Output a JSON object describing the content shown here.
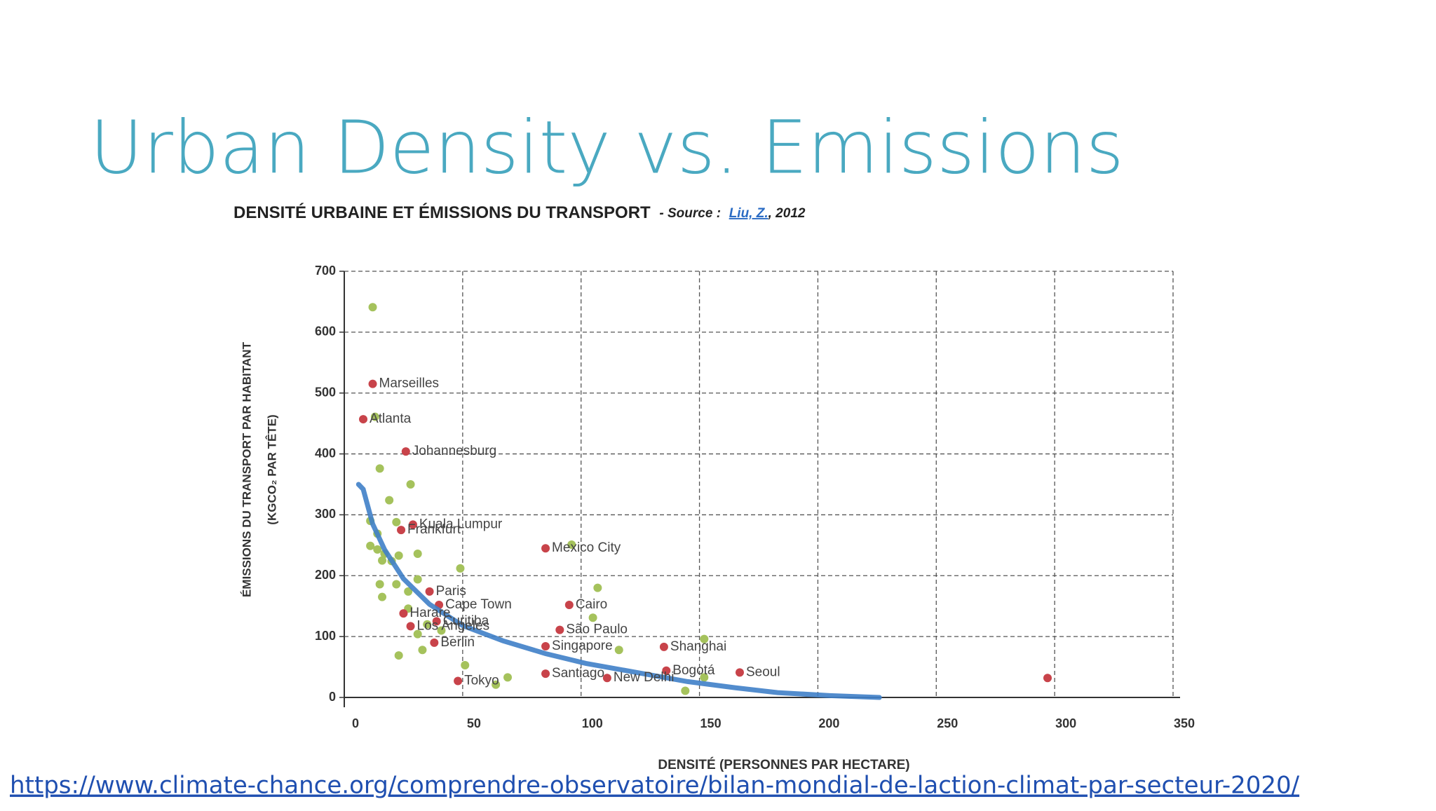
{
  "title": "Urban Density vs. Emissions",
  "link": "https://www.climate-chance.org/comprendre-observatoire/bilan-mondial-de-laction-climat-par-secteur-2020/",
  "chart_data": {
    "type": "scatter",
    "title": "DENSITÉ URBAINE ET ÉMISSIONS DU TRANSPORT",
    "source_label": "- Source :",
    "source_author": "Liu, Z.",
    "source_year": ", 2012",
    "xlabel": "DENSITÉ (PERSONNES PAR HECTARE)",
    "ylabel": [
      "ÉMISSIONS DU TRANSPORT PAR HABITANT",
      "(KGCO₂ PAR TÊTE)"
    ],
    "xlim": [
      0,
      350
    ],
    "ylim": [
      0,
      700
    ],
    "xticks": [
      0,
      50,
      100,
      150,
      200,
      250,
      300,
      350
    ],
    "yticks": [
      0,
      100,
      200,
      300,
      400,
      500,
      600,
      700
    ],
    "grid": true,
    "series": [
      {
        "color": "#c8434a",
        "x": [
          12,
          8,
          26,
          29,
          24,
          85,
          36,
          40,
          25,
          39,
          28,
          38,
          95,
          91,
          85,
          135,
          136,
          167,
          48,
          85,
          111,
          297
        ],
        "y": [
          515,
          457,
          404,
          284,
          275,
          245,
          174,
          152,
          138,
          125,
          117,
          90,
          152,
          111,
          84,
          83,
          44,
          41,
          27,
          39,
          32,
          32
        ],
        "labels": [
          "Marseilles",
          "Atlanta",
          "Johannesburg",
          "Kuala Lumpur",
          "Frankfurt",
          "Mexico City",
          "Paris",
          "Cape Town",
          "Harare",
          "Curitiba",
          "Los Angeles",
          "Berlin",
          "Cairo",
          "São Paulo",
          "Singapore",
          "Shanghai",
          "Bogotá",
          "Seoul",
          "Tokyo",
          "Santiago",
          "New Delhi",
          null
        ]
      },
      {
        "color": "#a5c25c",
        "x": [
          12,
          13,
          15,
          28,
          19,
          11,
          14,
          11,
          14,
          17,
          22,
          31,
          23,
          16,
          20,
          49,
          15,
          22,
          31,
          27,
          16,
          27,
          35,
          41,
          31,
          33,
          23,
          51,
          69,
          64,
          107,
          96,
          105,
          116,
          152,
          152,
          144
        ],
        "y": [
          641,
          461,
          376,
          350,
          324,
          290,
          269,
          249,
          243,
          236,
          288,
          236,
          233,
          225,
          224,
          212,
          186,
          186,
          194,
          174,
          165,
          146,
          120,
          110,
          104,
          78,
          69,
          53,
          33,
          21,
          180,
          251,
          131,
          78,
          96,
          33,
          11
        ]
      }
    ],
    "trend": {
      "color": "#3f7fc8",
      "x": [
        6,
        8,
        12,
        17,
        25,
        36,
        50,
        67,
        85,
        102,
        125,
        145,
        165,
        183,
        205,
        226
      ],
      "y": [
        350,
        342,
        285,
        243,
        195,
        153,
        118,
        93,
        72,
        56,
        40,
        26,
        16,
        8,
        3,
        0
      ]
    }
  }
}
